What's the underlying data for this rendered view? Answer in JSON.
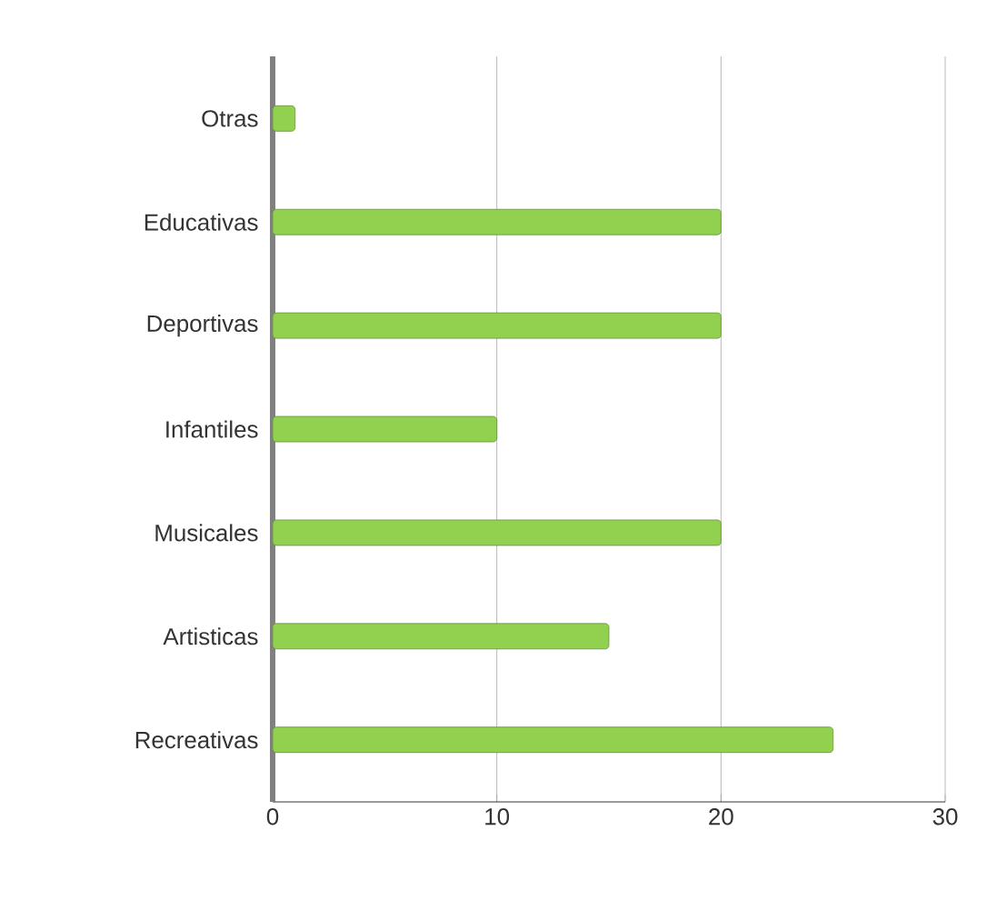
{
  "chart_data": {
    "type": "bar",
    "orientation": "horizontal",
    "categories": [
      "Otras",
      "Educativas",
      "Deportivas",
      "Infantiles",
      "Musicales",
      "Artisticas",
      "Recreativas"
    ],
    "values": [
      1,
      20,
      20,
      10,
      20,
      15,
      25
    ],
    "color": "#92d050",
    "xlim": [
      0,
      30
    ],
    "xticks": [
      0,
      10,
      20,
      30
    ],
    "grid": "x"
  }
}
